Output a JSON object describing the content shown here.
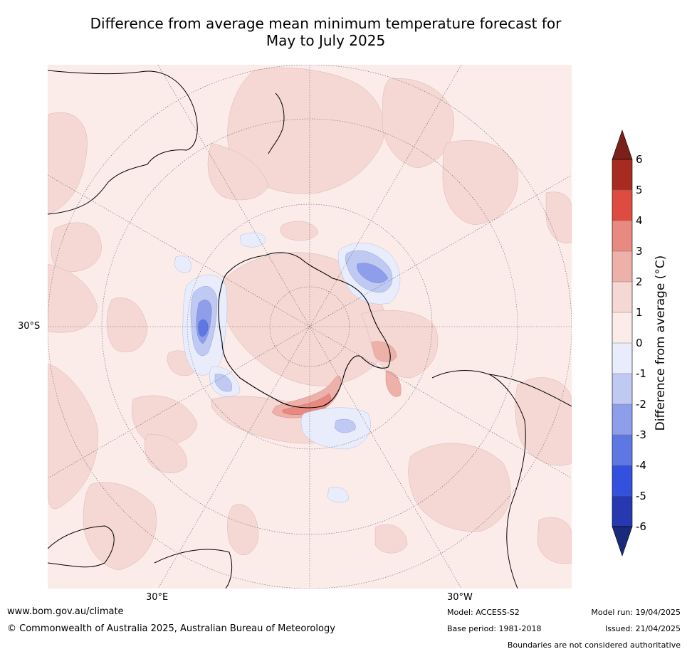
{
  "title": {
    "line1": "Difference from average mean minimum temperature forecast for",
    "line2": "May to July 2025"
  },
  "map": {
    "projection": "south-polar-stereographic",
    "lat_label": "30°S",
    "lon_labels": [
      "30°E",
      "30°W"
    ]
  },
  "colorbar": {
    "label": "Difference from average (°C)",
    "ticks": [
      "6",
      "5",
      "4",
      "3",
      "2",
      "1",
      "0",
      "-1",
      "-2",
      "-3",
      "-4",
      "-5",
      "-6"
    ],
    "colors": {
      "above_6": "#7a1f1a",
      "5_to_6": "#a82b22",
      "4_to_5": "#de4c41",
      "3_to_4": "#e88a80",
      "2_to_3": "#edb1aa",
      "1_to_2": "#f5d7d3",
      "0_to_1": "#fbecea",
      "-1_to_0": "#e8ecfb",
      "-2_to_-1": "#c0c9f2",
      "-3_to_-2": "#8e9eeb",
      "-4_to_-3": "#5e78e3",
      "-5_to_-4": "#3451de",
      "-6_to_-5": "#2639b0",
      "below_-6": "#1a2a7a"
    }
  },
  "footer": {
    "url": "www.bom.gov.au/climate",
    "copyright": "© Commonwealth of Australia 2025, Australian Bureau of Meteorology",
    "model": "Model: ACCESS-S2",
    "base_period": "Base period: 1981-2018",
    "model_run": "Model run: 19/04/2025",
    "issued": "Issued: 21/04/2025",
    "disclaimer": "Boundaries are not considered authoritative"
  }
}
